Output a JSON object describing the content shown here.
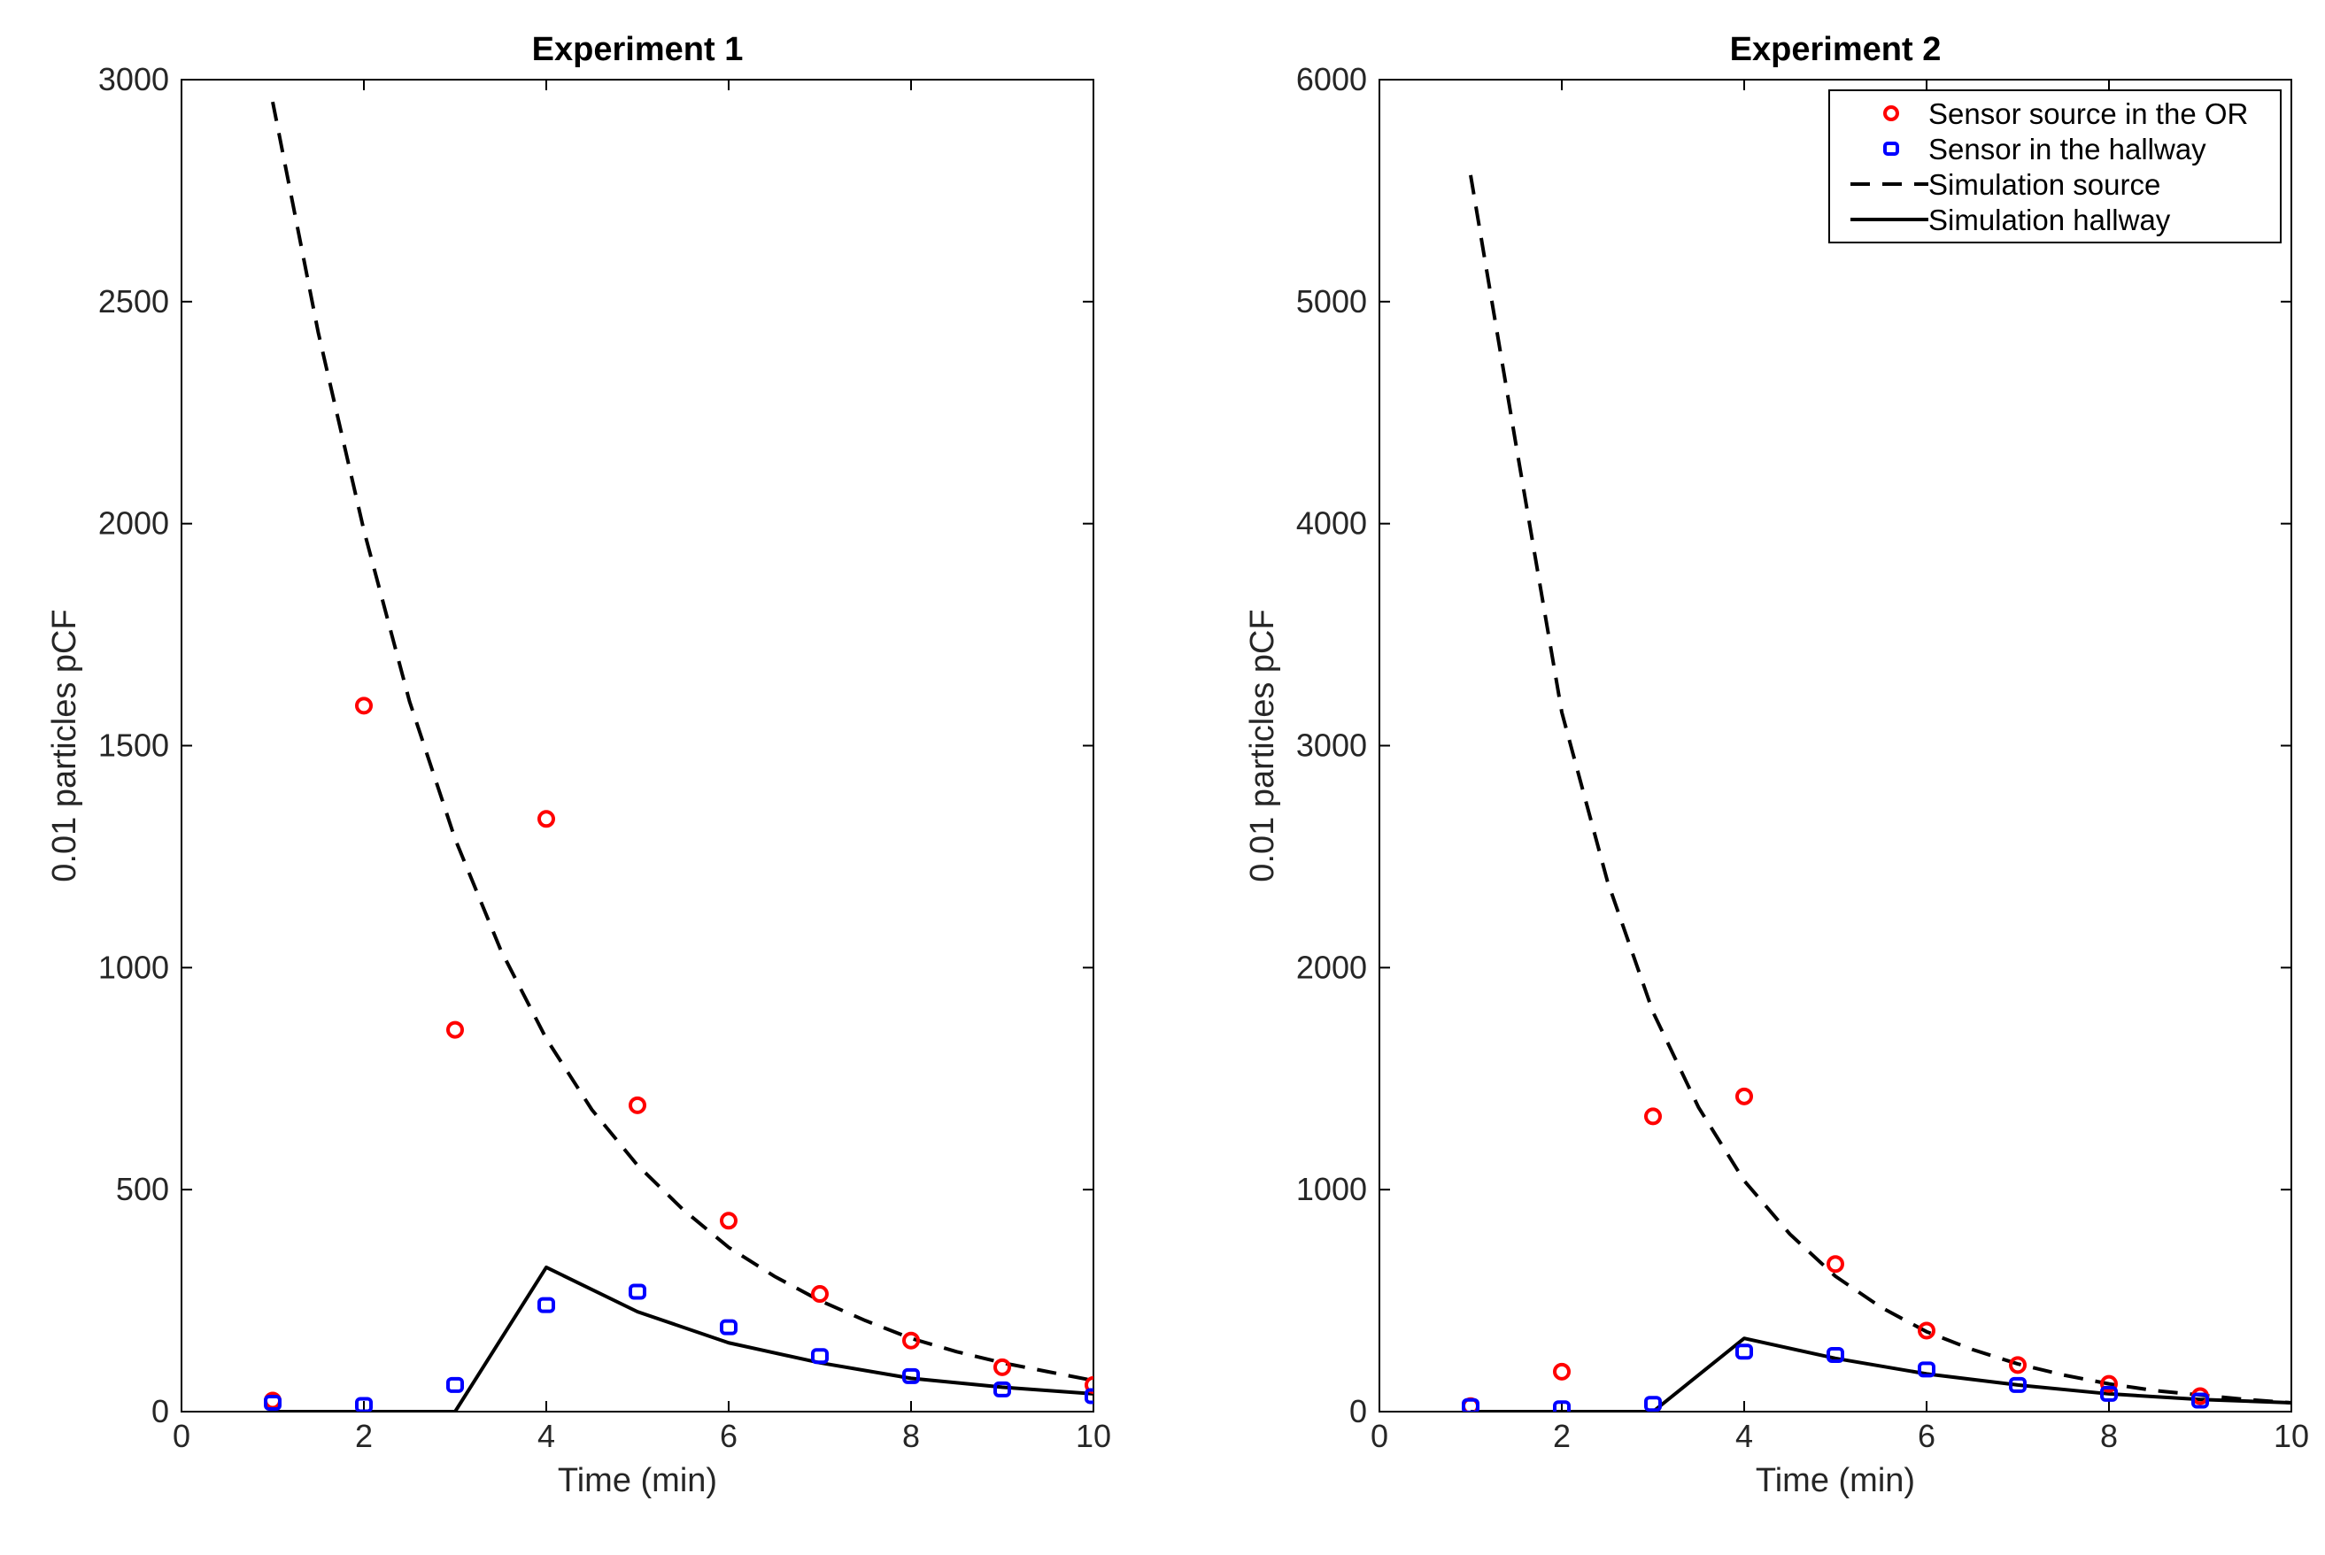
{
  "colors": {
    "source_marker": "#ff0000",
    "hallway_marker": "#0000ff",
    "simulation_line": "#000000",
    "axis": "#000000",
    "background": "#ffffff"
  },
  "chart_data": [
    {
      "type": "scatter",
      "title": "Experiment 1",
      "xlabel": "Time (min)",
      "ylabel": "0.01 particles pCF",
      "xlim": [
        0,
        10
      ],
      "ylim": [
        0,
        3000
      ],
      "xticks": [
        0,
        2,
        4,
        6,
        8,
        10
      ],
      "yticks": [
        0,
        500,
        1000,
        1500,
        2000,
        2500,
        3000
      ],
      "grid": false,
      "legend": null,
      "series": [
        {
          "name": "Sensor source in the OR",
          "kind": "markers",
          "marker": "circle",
          "color": "#ff0000",
          "x": [
            1,
            2,
            3,
            4,
            5,
            6,
            7,
            8,
            9,
            10
          ],
          "y": [
            25,
            1590,
            860,
            1335,
            690,
            430,
            265,
            160,
            100,
            60
          ]
        },
        {
          "name": "Sensor in the hallway",
          "kind": "markers",
          "marker": "square",
          "color": "#0000ff",
          "x": [
            1,
            2,
            3,
            4,
            5,
            6,
            7,
            8,
            9,
            10
          ],
          "y": [
            20,
            15,
            60,
            240,
            270,
            190,
            125,
            80,
            50,
            35
          ]
        },
        {
          "name": "Simulation source",
          "kind": "line",
          "dash": "dashed",
          "color": "#000000",
          "x": [
            1,
            1.5,
            2,
            2.5,
            3,
            3.5,
            4,
            4.5,
            5,
            5.5,
            6,
            6.5,
            7,
            7.5,
            8,
            8.5,
            9,
            9.5,
            10
          ],
          "y": [
            2950,
            2430,
            1985,
            1600,
            1290,
            1040,
            840,
            680,
            555,
            455,
            370,
            305,
            250,
            205,
            165,
            135,
            110,
            90,
            70
          ]
        },
        {
          "name": "Simulation hallway",
          "kind": "line",
          "dash": "solid",
          "color": "#000000",
          "x": [
            1,
            2,
            3,
            4,
            5,
            6,
            7,
            8,
            9,
            10
          ],
          "y": [
            0,
            0,
            0,
            325,
            225,
            155,
            110,
            75,
            55,
            40
          ]
        }
      ]
    },
    {
      "type": "scatter",
      "title": "Experiment 2",
      "xlabel": "Time (min)",
      "ylabel": "0.01 particles pCF",
      "xlim": [
        0,
        10
      ],
      "ylim": [
        0,
        6000
      ],
      "xticks": [
        0,
        2,
        4,
        6,
        8,
        10
      ],
      "yticks": [
        0,
        1000,
        2000,
        3000,
        4000,
        5000,
        6000
      ],
      "grid": false,
      "legend": "top-right",
      "series": [
        {
          "name": "Sensor source in the OR",
          "kind": "markers",
          "marker": "circle",
          "color": "#ff0000",
          "x": [
            1,
            2,
            3,
            4,
            5,
            6,
            7,
            8,
            9
          ],
          "y": [
            25,
            180,
            1330,
            1420,
            665,
            365,
            210,
            125,
            70
          ]
        },
        {
          "name": "Sensor in the hallway",
          "kind": "markers",
          "marker": "square",
          "color": "#0000ff",
          "x": [
            1,
            2,
            3,
            4,
            5,
            6,
            7,
            8,
            9
          ],
          "y": [
            25,
            15,
            35,
            270,
            255,
            190,
            120,
            80,
            50
          ]
        },
        {
          "name": "Simulation source",
          "kind": "line",
          "dash": "dashed",
          "color": "#000000",
          "x": [
            1,
            1.5,
            2,
            2.5,
            3,
            3.5,
            4,
            4.5,
            5,
            5.5,
            6,
            6.5,
            7,
            7.5,
            8,
            8.5,
            9,
            9.5,
            10
          ],
          "y": [
            5570,
            4350,
            3150,
            2390,
            1800,
            1370,
            1040,
            800,
            610,
            470,
            360,
            280,
            215,
            165,
            125,
            95,
            75,
            55,
            40
          ]
        },
        {
          "name": "Simulation hallway",
          "kind": "line",
          "dash": "solid",
          "color": "#000000",
          "x": [
            1,
            2,
            3,
            4,
            5,
            6,
            7,
            8,
            9,
            10
          ],
          "y": [
            0,
            0,
            0,
            330,
            240,
            170,
            120,
            80,
            55,
            40
          ]
        }
      ]
    }
  ]
}
